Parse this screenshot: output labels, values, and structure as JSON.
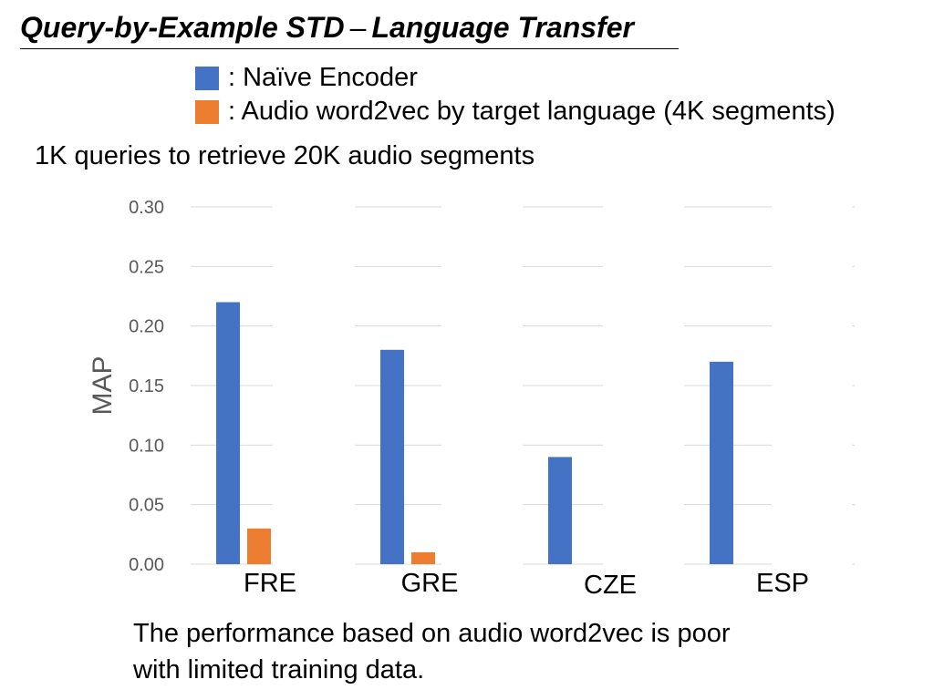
{
  "header": {
    "title_left": "Query-by-Example STD",
    "title_dash": "–",
    "title_right": "Language Transfer"
  },
  "legend": [
    {
      "label": ": Naïve Encoder",
      "color": "#4472C4"
    },
    {
      "label": ": Audio word2vec  by target language (4K segments)",
      "color": "#ED7D31"
    }
  ],
  "subtitle": "1K queries to retrieve 20K audio segments",
  "chart_data": {
    "type": "bar",
    "title": "1K queries to retrieve 20K audio segments",
    "xlabel": "",
    "ylabel": "MAP",
    "ylim": [
      0,
      0.3
    ],
    "yticks": [
      "0.00",
      "0.05",
      "0.10",
      "0.15",
      "0.20",
      "0.25",
      "0.30"
    ],
    "grid": true,
    "categories": [
      "FRE",
      "GRE",
      "CZE",
      "ESP"
    ],
    "series": [
      {
        "name": "Naïve Encoder",
        "color": "#4472C4",
        "values": [
          0.22,
          0.18,
          0.09,
          0.17
        ]
      },
      {
        "name": "Audio word2vec by target language (4K segments)",
        "color": "#ED7D31",
        "values": [
          0.03,
          0.01,
          0.0,
          0.0
        ]
      }
    ]
  },
  "note": {
    "line1": "The performance based on audio word2vec is poor",
    "line2": "with limited training data."
  }
}
